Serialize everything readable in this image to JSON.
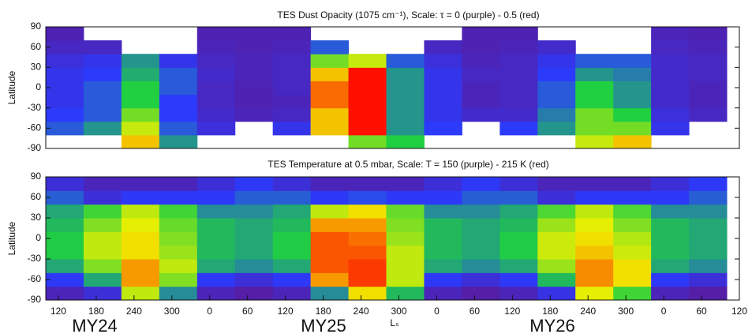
{
  "chart_data": [
    {
      "type": "heatmap",
      "title": "TES Dust Opacity (1075 cm⁻¹),  Scale: τ = 0 (purple) - 0.5 (red)",
      "ylabel": "Latitude",
      "xlim": [
        100,
        1200
      ],
      "ylim": [
        -90,
        90
      ],
      "yticks": [
        -90,
        -60,
        -30,
        0,
        30,
        60,
        90
      ],
      "x_edges": [
        100,
        160,
        220,
        280,
        340,
        400,
        460,
        520,
        580,
        640,
        700,
        760,
        820,
        880,
        940,
        1000,
        1060,
        1120,
        1180
      ],
      "y_edges": [
        -90,
        -70,
        -50,
        -30,
        -10,
        10,
        30,
        50,
        70,
        90
      ],
      "clim": [
        0,
        0.5
      ],
      "colorscale": [
        "#5a1a9a",
        "#2a3cff",
        "#20d040",
        "#f0f000",
        "#ff1000"
      ],
      "values": [
        [
          null,
          0.15,
          0.12,
          0.1,
          0.1,
          0.1,
          0.08,
          0.05,
          0.03
        ],
        [
          null,
          0.2,
          0.15,
          0.15,
          0.15,
          0.12,
          0.1,
          0.05,
          null
        ],
        [
          0.4,
          0.35,
          0.3,
          0.25,
          0.25,
          0.22,
          0.2,
          null,
          null
        ],
        [
          0.2,
          0.15,
          0.12,
          0.12,
          0.15,
          0.15,
          0.1,
          null,
          null
        ],
        [
          null,
          0.08,
          0.06,
          0.05,
          0.05,
          0.06,
          0.05,
          0.04,
          0.03
        ],
        [
          null,
          null,
          0.04,
          0.03,
          0.03,
          0.04,
          0.04,
          0.03,
          0.03
        ],
        [
          null,
          0.1,
          0.05,
          0.04,
          0.05,
          0.05,
          0.05,
          0.04,
          0.03
        ],
        [
          null,
          0.4,
          0.4,
          0.45,
          0.45,
          0.4,
          0.3,
          0.15,
          null
        ],
        [
          0.3,
          0.5,
          0.5,
          0.5,
          0.5,
          0.5,
          0.35,
          null,
          null
        ],
        [
          0.25,
          0.2,
          0.2,
          0.2,
          0.2,
          0.2,
          0.15,
          null,
          null
        ],
        [
          null,
          0.12,
          0.1,
          0.1,
          0.1,
          0.1,
          0.08,
          0.05,
          null
        ],
        [
          null,
          null,
          0.06,
          0.04,
          0.04,
          0.05,
          0.04,
          0.03,
          0.03
        ],
        [
          null,
          0.12,
          0.06,
          0.05,
          0.05,
          0.05,
          0.05,
          0.04,
          0.03
        ],
        [
          null,
          0.2,
          0.18,
          0.15,
          0.15,
          0.12,
          0.1,
          0.06,
          null
        ],
        [
          0.35,
          0.3,
          0.3,
          0.25,
          0.25,
          0.2,
          0.15,
          null,
          null
        ],
        [
          0.4,
          0.3,
          0.25,
          0.2,
          0.2,
          0.18,
          0.15,
          null,
          null
        ],
        [
          null,
          0.1,
          0.08,
          0.06,
          0.06,
          0.06,
          0.06,
          0.05,
          0.04
        ],
        [
          null,
          null,
          0.05,
          0.04,
          0.04,
          0.05,
          0.05,
          0.04,
          0.03
        ]
      ]
    },
    {
      "type": "heatmap",
      "title": "TES Temperature at 0.5 mbar,  Scale: T = 150 (purple) - 215 K (red)",
      "ylabel": "Latitude",
      "xlabel": "Lₛ",
      "xlim": [
        100,
        1200
      ],
      "ylim": [
        -90,
        90
      ],
      "yticks": [
        -90,
        -60,
        -30,
        0,
        30,
        60,
        90
      ],
      "xticks": [
        120,
        180,
        240,
        300,
        {
          "value": 360,
          "label": "0"
        },
        {
          "value": 420,
          "label": "60"
        },
        {
          "value": 480,
          "label": "120"
        },
        {
          "value": 540,
          "label": "180"
        },
        {
          "value": 600,
          "label": "240"
        },
        {
          "value": 660,
          "label": "300"
        },
        {
          "value": 720,
          "label": "0"
        },
        {
          "value": 780,
          "label": "60"
        },
        {
          "value": 840,
          "label": "120"
        },
        {
          "value": 900,
          "label": "180"
        },
        {
          "value": 960,
          "label": "240"
        },
        {
          "value": 1020,
          "label": "300"
        },
        {
          "value": 1080,
          "label": "0"
        },
        {
          "value": 1140,
          "label": "60"
        },
        {
          "value": 1200,
          "label": "120"
        }
      ],
      "x_edges": [
        100,
        160,
        220,
        280,
        340,
        400,
        460,
        520,
        580,
        640,
        700,
        760,
        820,
        880,
        940,
        1000,
        1060,
        1120,
        1180
      ],
      "y_edges": [
        -90,
        -70,
        -50,
        -30,
        -10,
        10,
        30,
        50,
        70,
        90
      ],
      "clim": [
        150,
        215
      ],
      "colorscale": [
        "#5a1a9a",
        "#2a3cff",
        "#20d040",
        "#f0f000",
        "#ff1000"
      ],
      "values": [
        [
          155,
          165,
          178,
          182,
          182,
          180,
          178,
          170,
          160
        ],
        [
          160,
          178,
          190,
          195,
          195,
          190,
          185,
          160,
          155
        ],
        [
          195,
          205,
          205,
          200,
          200,
          198,
          195,
          165,
          155
        ],
        [
          175,
          190,
          195,
          192,
          190,
          188,
          185,
          165,
          155
        ],
        [
          155,
          165,
          178,
          180,
          180,
          180,
          175,
          165,
          160
        ],
        [
          152,
          160,
          175,
          178,
          178,
          178,
          175,
          170,
          165
        ],
        [
          155,
          165,
          178,
          182,
          182,
          180,
          178,
          170,
          160
        ],
        [
          175,
          205,
          210,
          210,
          210,
          205,
          195,
          165,
          155
        ],
        [
          200,
          212,
          212,
          210,
          208,
          205,
          200,
          168,
          155
        ],
        [
          180,
          195,
          195,
          195,
          192,
          190,
          188,
          165,
          155
        ],
        [
          155,
          165,
          178,
          180,
          180,
          180,
          175,
          165,
          160
        ],
        [
          152,
          160,
          175,
          178,
          178,
          178,
          175,
          170,
          165
        ],
        [
          155,
          165,
          178,
          182,
          182,
          180,
          178,
          170,
          160
        ],
        [
          162,
          180,
          192,
          196,
          196,
          192,
          186,
          160,
          155
        ],
        [
          198,
          206,
          206,
          202,
          200,
          198,
          195,
          165,
          155
        ],
        [
          185,
          200,
          200,
          196,
          194,
          190,
          186,
          165,
          155
        ],
        [
          155,
          165,
          178,
          180,
          180,
          180,
          175,
          165,
          160
        ],
        [
          152,
          160,
          175,
          178,
          178,
          178,
          175,
          170,
          165
        ]
      ],
      "annotations": [
        "MY24",
        "MY25",
        "MY26"
      ]
    }
  ]
}
